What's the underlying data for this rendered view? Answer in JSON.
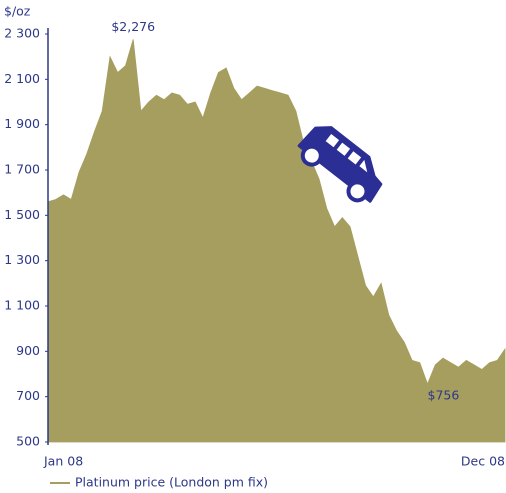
{
  "chart_data": {
    "type": "area",
    "y_label": "$/oz",
    "categories": [
      "Jan 08",
      null,
      null,
      null,
      null,
      null,
      null,
      null,
      null,
      null,
      null,
      null,
      null,
      null,
      null,
      null,
      null,
      null,
      null,
      null,
      null,
      null,
      null,
      null,
      null,
      null,
      null,
      null,
      null,
      null,
      null,
      null,
      null,
      null,
      null,
      null,
      null,
      null,
      null,
      null,
      null,
      null,
      null,
      null,
      null,
      null,
      null,
      null,
      null,
      null,
      null,
      null,
      null,
      null,
      null,
      null,
      null,
      null,
      null,
      "Dec 08"
    ],
    "series": [
      {
        "name": "Platinum price (London pm fix)",
        "color": "#a69e5e",
        "values": [
          1560,
          1570,
          1590,
          1570,
          1690,
          1770,
          1870,
          1960,
          2200,
          2130,
          2160,
          2276,
          1960,
          2000,
          2030,
          2010,
          2040,
          2030,
          1990,
          2000,
          1930,
          2040,
          2130,
          2150,
          2060,
          2010,
          2040,
          2070,
          2060,
          2050,
          2040,
          2030,
          1960,
          1820,
          1740,
          1660,
          1530,
          1450,
          1490,
          1450,
          1320,
          1190,
          1140,
          1200,
          1060,
          990,
          940,
          860,
          850,
          756,
          840,
          870,
          850,
          830,
          860,
          840,
          820,
          850,
          860,
          910
        ],
        "value_labels": [
          null,
          null,
          null,
          null,
          null,
          null,
          null,
          null,
          null,
          null,
          null,
          "$2,276",
          null,
          null,
          null,
          null,
          null,
          null,
          null,
          null,
          null,
          null,
          null,
          null,
          null,
          null,
          null,
          null,
          null,
          null,
          null,
          null,
          null,
          null,
          null,
          null,
          null,
          null,
          null,
          null,
          null,
          null,
          null,
          null,
          null,
          null,
          null,
          null,
          null,
          "$756",
          null,
          null,
          null,
          null,
          null,
          null,
          null,
          null,
          null,
          null
        ]
      }
    ],
    "ylim": [
      500,
      2300
    ],
    "yticks": [
      {
        "value": 2300,
        "label": "2 300"
      },
      {
        "value": 2100,
        "label": "2 100"
      },
      {
        "value": 1900,
        "label": "1 900"
      },
      {
        "value": 1700,
        "label": "1 700"
      },
      {
        "value": 1500,
        "label": "1 500"
      },
      {
        "value": 1300,
        "label": "1 300"
      },
      {
        "value": 1100,
        "label": "1 100"
      },
      900,
      700,
      500
    ],
    "grid": false,
    "legend": "bottom-left"
  }
}
